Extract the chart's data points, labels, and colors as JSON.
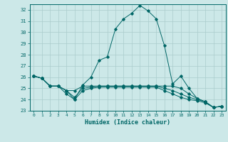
{
  "title": "",
  "xlabel": "Humidex (Indice chaleur)",
  "ylabel": "",
  "background_color": "#cce8e8",
  "grid_color": "#aacccc",
  "line_color": "#006666",
  "xlim": [
    -0.5,
    23.5
  ],
  "ylim": [
    23,
    32.5
  ],
  "yticks": [
    23,
    24,
    25,
    26,
    27,
    28,
    29,
    30,
    31,
    32
  ],
  "xticks": [
    0,
    1,
    2,
    3,
    4,
    5,
    6,
    7,
    8,
    9,
    10,
    11,
    12,
    13,
    14,
    15,
    16,
    17,
    18,
    19,
    20,
    21,
    22,
    23
  ],
  "series": [
    [
      26.1,
      25.9,
      25.2,
      25.2,
      24.8,
      24.0,
      25.3,
      26.0,
      27.5,
      27.8,
      30.3,
      31.2,
      31.7,
      32.4,
      31.9,
      31.2,
      28.8,
      25.4,
      26.1,
      25.0,
      24.1,
      23.8,
      23.3,
      23.4
    ],
    [
      26.1,
      25.9,
      25.2,
      25.2,
      24.8,
      24.8,
      25.2,
      25.2,
      25.2,
      25.2,
      25.2,
      25.2,
      25.2,
      25.2,
      25.2,
      25.2,
      25.2,
      25.2,
      25.0,
      24.5,
      24.1,
      23.8,
      23.3,
      23.4
    ],
    [
      26.1,
      25.9,
      25.2,
      25.2,
      24.8,
      24.2,
      25.0,
      25.1,
      25.2,
      25.2,
      25.2,
      25.2,
      25.2,
      25.2,
      25.2,
      25.2,
      25.0,
      24.8,
      24.5,
      24.2,
      24.0,
      23.8,
      23.3,
      23.4
    ],
    [
      26.1,
      25.9,
      25.2,
      25.2,
      24.5,
      24.0,
      24.8,
      25.0,
      25.1,
      25.1,
      25.1,
      25.1,
      25.1,
      25.1,
      25.1,
      25.1,
      24.8,
      24.5,
      24.2,
      24.0,
      23.9,
      23.7,
      23.3,
      23.4
    ]
  ]
}
